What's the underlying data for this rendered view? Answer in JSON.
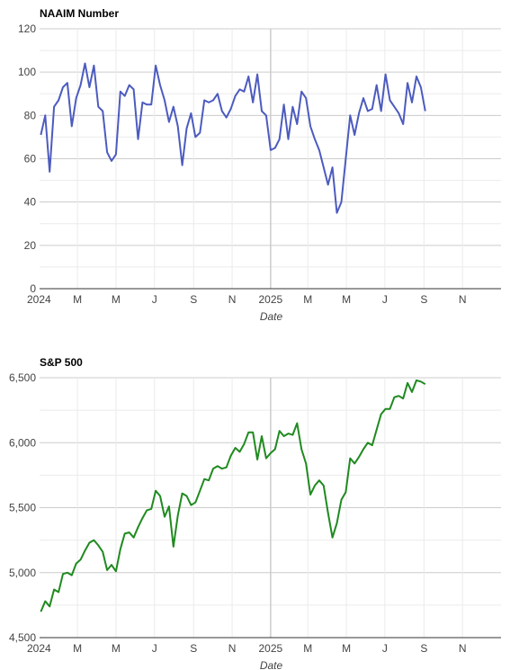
{
  "chart_data": [
    {
      "type": "line",
      "title": "NAAIM Number",
      "xlabel": "Date",
      "ylabel": "",
      "ylim": [
        0,
        120
      ],
      "yticks": [
        0,
        20,
        40,
        60,
        80,
        100,
        120
      ],
      "yticks_labels": [
        "0",
        "20",
        "40",
        "60",
        "80",
        "100",
        "120"
      ],
      "xticks": [
        "2024",
        "M",
        "M",
        "J",
        "S",
        "N",
        "2025",
        "M",
        "M",
        "J",
        "S",
        "N"
      ],
      "x_start": "2024-01",
      "x_end": "2026-01",
      "x": [
        "2024-01-03",
        "2024-01-10",
        "2024-01-17",
        "2024-01-24",
        "2024-01-31",
        "2024-02-07",
        "2024-02-14",
        "2024-02-21",
        "2024-02-28",
        "2024-03-06",
        "2024-03-13",
        "2024-03-20",
        "2024-03-27",
        "2024-04-03",
        "2024-04-10",
        "2024-04-17",
        "2024-04-24",
        "2024-05-01",
        "2024-05-08",
        "2024-05-15",
        "2024-05-22",
        "2024-05-29",
        "2024-06-05",
        "2024-06-12",
        "2024-06-19",
        "2024-06-26",
        "2024-07-03",
        "2024-07-10",
        "2024-07-17",
        "2024-07-24",
        "2024-07-31",
        "2024-08-07",
        "2024-08-14",
        "2024-08-21",
        "2024-08-28",
        "2024-09-04",
        "2024-09-11",
        "2024-09-18",
        "2024-09-25",
        "2024-10-02",
        "2024-10-09",
        "2024-10-16",
        "2024-10-23",
        "2024-10-30",
        "2024-11-06",
        "2024-11-13",
        "2024-11-20",
        "2024-11-27",
        "2024-12-04",
        "2024-12-11",
        "2024-12-18",
        "2024-12-25",
        "2025-01-01",
        "2025-01-08",
        "2025-01-15",
        "2025-01-22",
        "2025-01-29",
        "2025-02-05",
        "2025-02-12",
        "2025-02-19",
        "2025-02-26",
        "2025-03-05",
        "2025-03-12",
        "2025-03-19",
        "2025-03-26",
        "2025-04-02",
        "2025-04-09",
        "2025-04-16",
        "2025-04-23",
        "2025-04-30",
        "2025-05-07",
        "2025-05-14",
        "2025-05-21",
        "2025-05-28",
        "2025-06-04",
        "2025-06-11",
        "2025-06-18",
        "2025-06-25",
        "2025-07-02",
        "2025-07-09",
        "2025-07-16",
        "2025-07-23",
        "2025-07-30",
        "2025-08-06",
        "2025-08-13",
        "2025-08-20",
        "2025-08-27",
        "2025-09-03"
      ],
      "series": [
        {
          "color": "#4c5bbf",
          "values": [
            71,
            80,
            54,
            84,
            87,
            93,
            95,
            75,
            88,
            94,
            104,
            93,
            103,
            84,
            82,
            63,
            59,
            62,
            91,
            89,
            94,
            92,
            69,
            86,
            85,
            85,
            103,
            94,
            87,
            77,
            84,
            75,
            57,
            74,
            81,
            70,
            72,
            87,
            86,
            87,
            90,
            82,
            79,
            83,
            89,
            92,
            91,
            98,
            86,
            99,
            82,
            80,
            64,
            65,
            69,
            85,
            69,
            84,
            76,
            91,
            88,
            75,
            69,
            64,
            56,
            48,
            56,
            35,
            40,
            60,
            80,
            71,
            81,
            88,
            82,
            83,
            94,
            82,
            99,
            87,
            84,
            81,
            76,
            95,
            86,
            98,
            93,
            82
          ]
        }
      ]
    },
    {
      "type": "line",
      "title": "S&P 500",
      "xlabel": "Date",
      "ylabel": "",
      "ylim": [
        4500,
        6500
      ],
      "yticks": [
        4500,
        5000,
        5500,
        6000,
        6500
      ],
      "yticks_labels": [
        "4,500",
        "5,000",
        "5,500",
        "6,000",
        "6,500"
      ],
      "xticks": [
        "2024",
        "M",
        "M",
        "J",
        "S",
        "N",
        "2025",
        "M",
        "M",
        "J",
        "S",
        "N"
      ],
      "x_start": "2024-01",
      "x_end": "2026-01",
      "x": [
        "2024-01-03",
        "2024-01-10",
        "2024-01-17",
        "2024-01-24",
        "2024-01-31",
        "2024-02-07",
        "2024-02-14",
        "2024-02-21",
        "2024-02-28",
        "2024-03-06",
        "2024-03-13",
        "2024-03-20",
        "2024-03-27",
        "2024-04-03",
        "2024-04-10",
        "2024-04-17",
        "2024-04-24",
        "2024-05-01",
        "2024-05-08",
        "2024-05-15",
        "2024-05-22",
        "2024-05-29",
        "2024-06-05",
        "2024-06-12",
        "2024-06-19",
        "2024-06-26",
        "2024-07-03",
        "2024-07-10",
        "2024-07-17",
        "2024-07-24",
        "2024-07-31",
        "2024-08-07",
        "2024-08-14",
        "2024-08-21",
        "2024-08-28",
        "2024-09-04",
        "2024-09-11",
        "2024-09-18",
        "2024-09-25",
        "2024-10-02",
        "2024-10-09",
        "2024-10-16",
        "2024-10-23",
        "2024-10-30",
        "2024-11-06",
        "2024-11-13",
        "2024-11-20",
        "2024-11-27",
        "2024-12-04",
        "2024-12-11",
        "2024-12-18",
        "2024-12-25",
        "2025-01-01",
        "2025-01-08",
        "2025-01-15",
        "2025-01-22",
        "2025-01-29",
        "2025-02-05",
        "2025-02-12",
        "2025-02-19",
        "2025-02-26",
        "2025-03-05",
        "2025-03-12",
        "2025-03-19",
        "2025-03-26",
        "2025-04-02",
        "2025-04-09",
        "2025-04-16",
        "2025-04-23",
        "2025-04-30",
        "2025-05-07",
        "2025-05-14",
        "2025-05-21",
        "2025-05-28",
        "2025-06-04",
        "2025-06-11",
        "2025-06-18",
        "2025-06-25",
        "2025-07-02",
        "2025-07-09",
        "2025-07-16",
        "2025-07-23",
        "2025-07-30",
        "2025-08-06",
        "2025-08-13",
        "2025-08-20",
        "2025-08-27",
        "2025-09-03"
      ],
      "series": [
        {
          "color": "#1f8a1f",
          "values": [
            4700,
            4780,
            4740,
            4870,
            4850,
            4990,
            5000,
            4980,
            5070,
            5100,
            5170,
            5230,
            5250,
            5210,
            5160,
            5020,
            5060,
            5010,
            5180,
            5300,
            5310,
            5270,
            5350,
            5420,
            5480,
            5490,
            5630,
            5590,
            5430,
            5510,
            5200,
            5440,
            5610,
            5590,
            5520,
            5540,
            5630,
            5720,
            5710,
            5800,
            5820,
            5800,
            5810,
            5900,
            5960,
            5930,
            5990,
            6080,
            6080,
            5870,
            6050,
            5880,
            5920,
            5950,
            6090,
            6050,
            6070,
            6060,
            6150,
            5950,
            5840,
            5600,
            5670,
            5710,
            5670,
            5460,
            5270,
            5380,
            5560,
            5620,
            5880,
            5840,
            5890,
            5950,
            6000,
            5980,
            6100,
            6220,
            6260,
            6260,
            6350,
            6360,
            6340,
            6460,
            6390,
            6480,
            6470,
            6450
          ]
        }
      ]
    }
  ]
}
